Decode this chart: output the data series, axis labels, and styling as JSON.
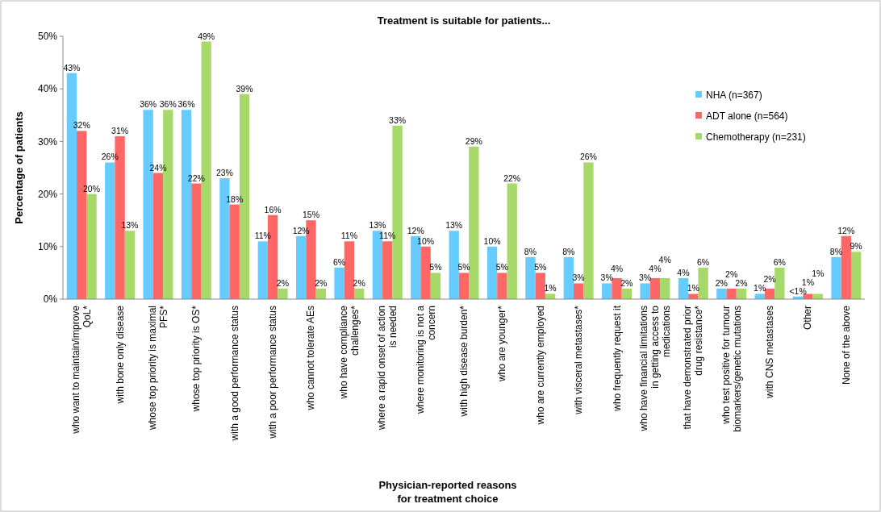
{
  "chart_data": {
    "type": "bar",
    "title": "Treatment is suitable for patients...",
    "xlabel": "Physician-reported reasons\nfor treatment choice",
    "ylabel": "Percentage of patients",
    "categories": [
      "who want to maintain/improve QoL*",
      "with bone only disease",
      "whose top priority is maximal PFS*",
      "whose top priority is OS*",
      "with a good performance status",
      "with a poor performance status",
      "who cannot tolerate AEs",
      "who have compliance challenges*",
      "where a rapid onset of action is needed",
      "where monitoring is not a concern",
      "with high disease burden*",
      "who are younger*",
      "who are currently employed",
      "with visceral metastases*",
      "who frequently request it",
      "who have financial limitations in getting access to medications",
      "that have demonstrated prior drug resistance*",
      "who test positive for tumour biomarkers/genetic mutations",
      "with CNS metastases",
      "Other",
      "None of the above"
    ],
    "series": [
      {
        "name": "NHA (n=367)",
        "color": "#66ccff",
        "values": [
          43,
          26,
          36,
          36,
          23,
          11,
          12,
          6,
          13,
          12,
          13,
          10,
          8,
          8,
          3,
          3,
          4,
          2,
          1,
          0.5,
          8
        ],
        "value_labels": [
          "43%",
          "26%",
          "36%",
          "36%",
          "23%",
          "11%",
          "12%",
          "6%",
          "13%",
          "12%",
          "13%",
          "10%",
          "8%",
          "8%",
          "3%",
          "3%",
          "4%",
          "2%",
          "1%",
          "<1%",
          "8%"
        ]
      },
      {
        "name": "ADT alone (n=564)",
        "color": "#ff6666",
        "values": [
          32,
          31,
          24,
          22,
          18,
          16,
          15,
          11,
          11,
          10,
          5,
          5,
          5,
          3,
          4,
          4,
          1,
          2,
          2,
          1,
          12
        ],
        "value_labels": [
          "32%",
          "31%",
          "24%",
          "22%",
          "18%",
          "16%",
          "15%",
          "11%",
          "11%",
          "10%",
          "5%",
          "5%",
          "5%",
          "3%",
          "4%",
          "4%",
          "1%",
          "2%",
          "2%",
          "1%",
          "12%"
        ]
      },
      {
        "name": "Chemotherapy (n=231)",
        "color": "#a6d96a",
        "values": [
          20,
          13,
          36,
          49,
          39,
          2,
          2,
          2,
          33,
          5,
          29,
          22,
          1,
          26,
          2,
          4,
          6,
          2,
          6,
          1,
          9
        ],
        "value_labels": [
          "20%",
          "13%",
          "36%",
          "49%",
          "39%",
          "2%",
          "2%",
          "2%",
          "33%",
          "5%",
          "29%",
          "22%",
          "1%",
          "26%",
          "2%",
          "4%",
          "6%",
          "2%",
          "6%",
          "1%",
          "9%"
        ]
      }
    ],
    "ylim": [
      0,
      50
    ],
    "yticks": [
      {
        "value": 0,
        "label": "0%"
      },
      {
        "value": 10,
        "label": "10%"
      },
      {
        "value": 20,
        "label": "20%"
      },
      {
        "value": 30,
        "label": "30%"
      },
      {
        "value": 40,
        "label": "40%"
      },
      {
        "value": 50,
        "label": "50%"
      }
    ],
    "grid": false,
    "legend": "top right"
  }
}
